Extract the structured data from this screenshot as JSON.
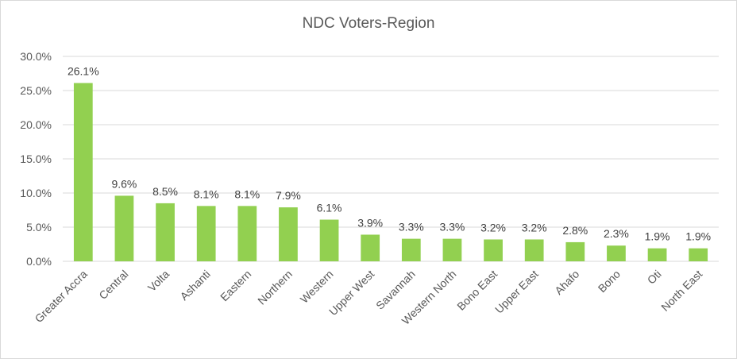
{
  "chart_data": {
    "type": "bar",
    "title": "NDC Voters-Region",
    "categories": [
      "Greater Accra",
      "Central",
      "Volta",
      "Ashanti",
      "Eastern",
      "Northern",
      "Western",
      "Upper West",
      "Savannah",
      "Western North",
      "Bono East",
      "Upper East",
      "Ahafo",
      "Bono",
      "Oti",
      "North East"
    ],
    "values": [
      26.1,
      9.6,
      8.5,
      8.1,
      8.1,
      7.9,
      6.1,
      3.9,
      3.3,
      3.3,
      3.2,
      3.2,
      2.8,
      2.3,
      1.9,
      1.9
    ],
    "data_labels": [
      "26.1%",
      "9.6%",
      "8.5%",
      "8.1%",
      "8.1%",
      "7.9%",
      "6.1%",
      "3.9%",
      "3.3%",
      "3.3%",
      "3.2%",
      "3.2%",
      "2.8%",
      "2.3%",
      "1.9%",
      "1.9%"
    ],
    "y_ticks": [
      0,
      5,
      10,
      15,
      20,
      25,
      30
    ],
    "y_tick_labels": [
      "0.0%",
      "5.0%",
      "10.0%",
      "15.0%",
      "20.0%",
      "25.0%",
      "30.0%"
    ],
    "ylim": [
      0,
      30
    ],
    "xlabel": "",
    "ylabel": "",
    "grid": true,
    "legend": "none",
    "bar_color": "#92d050",
    "grid_color": "#d9d9d9",
    "text_color": "#595959"
  }
}
